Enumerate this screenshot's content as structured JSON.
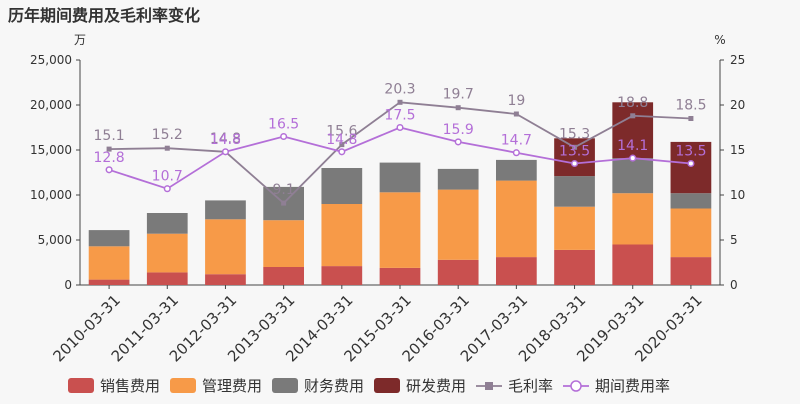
{
  "chart_data": {
    "type": "bar",
    "title": "历年期间费用及毛利率变化",
    "y_left_unit": "万",
    "y_right_unit": "%",
    "ylim_left": [
      0,
      25000
    ],
    "ylim_right": [
      0,
      25
    ],
    "yticks_left": [
      "0",
      "5,000",
      "10,000",
      "15,000",
      "20,000",
      "25,000"
    ],
    "yticks_right": [
      "0",
      "5",
      "10",
      "15",
      "20",
      "25"
    ],
    "grid": false,
    "legend_position": "bottom",
    "categories": [
      "2010-03-31",
      "2011-03-31",
      "2012-03-31",
      "2013-03-31",
      "2014-03-31",
      "2015-03-31",
      "2016-03-31",
      "2017-03-31",
      "2018-03-31",
      "2019-03-31",
      "2020-03-31"
    ],
    "stacked_series": [
      {
        "name": "销售费用",
        "color": "#c9504f",
        "values": [
          600,
          1400,
          1200,
          2000,
          2100,
          1900,
          2800,
          3100,
          3900,
          4500,
          3100
        ]
      },
      {
        "name": "管理费用",
        "color": "#f79a48",
        "values": [
          3700,
          4300,
          6100,
          5200,
          6900,
          8400,
          7800,
          8500,
          4800,
          5700,
          5400
        ]
      },
      {
        "name": "财务费用",
        "color": "#7a7a7a",
        "values": [
          1800,
          2300,
          2100,
          3700,
          4000,
          3300,
          2300,
          2300,
          3400,
          3900,
          1700
        ]
      },
      {
        "name": "研发费用",
        "color": "#7d2a2a",
        "values": [
          0,
          0,
          0,
          0,
          0,
          0,
          0,
          0,
          4200,
          6200,
          5700
        ]
      }
    ],
    "line_series": [
      {
        "name": "毛利率",
        "color": "#8f7f94",
        "marker": "square",
        "values": [
          15.1,
          15.2,
          14.8,
          9.1,
          15.6,
          20.3,
          19.7,
          19,
          15.3,
          18.8,
          18.5
        ],
        "labels": [
          "15.1",
          "15.2",
          "14.8",
          "9.1",
          "15.6",
          "20.3",
          "19.7",
          "19",
          "15.3",
          "18.8",
          "18.5"
        ]
      },
      {
        "name": "期间费用率",
        "color": "#b46fd8",
        "marker": "circle",
        "values": [
          12.8,
          10.7,
          14.8,
          16.5,
          14.8,
          17.5,
          15.9,
          14.7,
          13.5,
          14.1,
          13.5
        ],
        "labels": [
          "12.8",
          "10.7",
          "14.8",
          "16.5",
          "14.8",
          "17.5",
          "15.9",
          "14.7",
          "13.5",
          "14.1",
          "13.5"
        ]
      }
    ]
  }
}
